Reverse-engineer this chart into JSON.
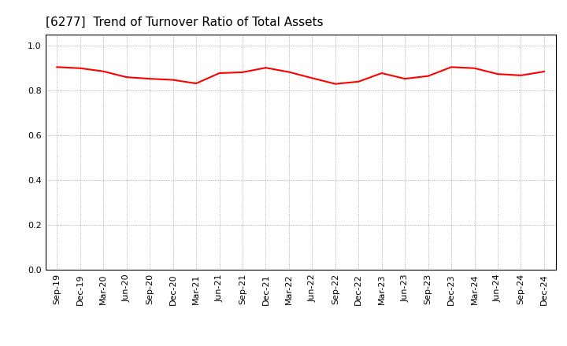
{
  "title": "[6277]  Trend of Turnover Ratio of Total Assets",
  "title_fontsize": 11,
  "line_color": "#FF0000",
  "line_width": 1.5,
  "background_color": "#FFFFFF",
  "grid_color": "#999999",
  "ylim": [
    0.0,
    1.05
  ],
  "yticks": [
    0.0,
    0.2,
    0.4,
    0.6,
    0.8,
    1.0
  ],
  "labels": [
    "Sep-19",
    "Dec-19",
    "Mar-20",
    "Jun-20",
    "Sep-20",
    "Dec-20",
    "Mar-21",
    "Jun-21",
    "Sep-21",
    "Dec-21",
    "Mar-22",
    "Jun-22",
    "Sep-22",
    "Dec-22",
    "Mar-23",
    "Jun-23",
    "Sep-23",
    "Dec-23",
    "Mar-24",
    "Jun-24",
    "Sep-24",
    "Dec-24"
  ],
  "values": [
    0.905,
    0.9,
    0.886,
    0.86,
    0.853,
    0.848,
    0.832,
    0.878,
    0.882,
    0.902,
    0.883,
    0.856,
    0.83,
    0.84,
    0.878,
    0.853,
    0.865,
    0.905,
    0.9,
    0.874,
    0.868,
    0.885
  ]
}
